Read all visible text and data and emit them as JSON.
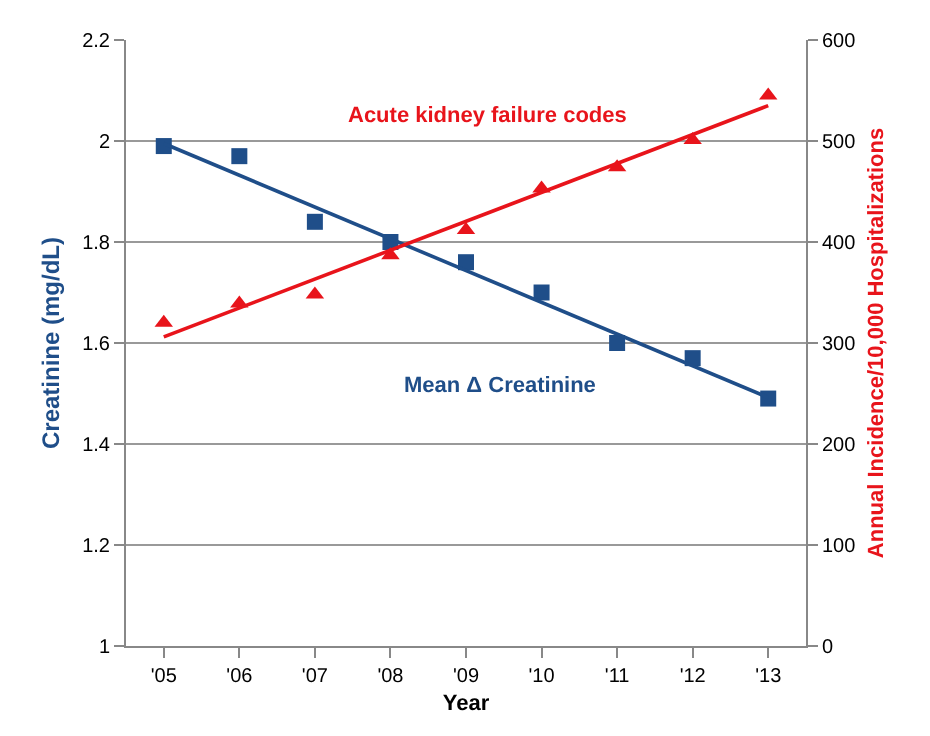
{
  "chart_data": {
    "type": "scatter",
    "xlabel": "Year",
    "ylabel": "Creatinine (mg/dL)",
    "y2label": "Annual Incidence/10,000 Hospitalizations",
    "categories": [
      "'05",
      "'06",
      "'07",
      "'08",
      "'09",
      "'10",
      "'11",
      "'12",
      "'13"
    ],
    "series": [
      {
        "name": "Mean Δ Creatinine",
        "marker": "square",
        "color": "#1f4e89",
        "values": [
          1.99,
          1.97,
          1.84,
          1.8,
          1.76,
          1.7,
          1.6,
          1.57,
          1.49
        ]
      },
      {
        "type": "line",
        "marker": "none",
        "color": "#1f4e89",
        "x": [
          "'05",
          "'13"
        ],
        "values": [
          1.995,
          1.492
        ]
      },
      {
        "name": "Acute kidney failure codes",
        "marker": "triangle",
        "axis": "y2",
        "color": "#e8141b",
        "values": [
          320,
          339,
          348,
          387,
          412,
          453,
          474,
          501,
          545
        ]
      },
      {
        "type": "line",
        "marker": "none",
        "axis": "y2",
        "color": "#e8141b",
        "x": [
          "'05",
          "'13"
        ],
        "values": [
          306,
          535
        ]
      }
    ],
    "ylim": [
      1,
      2.2
    ],
    "yticks": [
      1,
      1.2,
      1.4,
      1.6,
      1.8,
      2,
      2.2
    ],
    "y2lim": [
      0,
      600
    ],
    "y2ticks": [
      0,
      100,
      200,
      300,
      400,
      500,
      600
    ],
    "grid": "y",
    "legend": false
  }
}
